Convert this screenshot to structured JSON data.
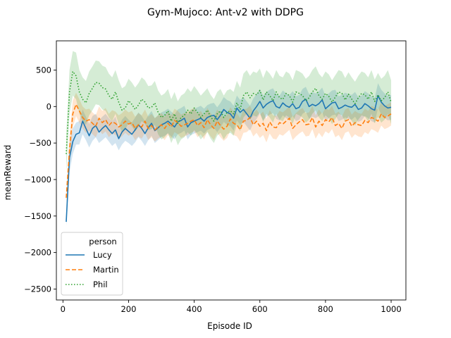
{
  "chart_data": {
    "type": "line",
    "title": "Gym-Mujoco: Ant-v2 with DDPG",
    "xlabel": "Episode ID",
    "ylabel": "meanReward",
    "xlim": [
      -20,
      1045
    ],
    "ylim": [
      -2650,
      900
    ],
    "xticks": [
      0,
      200,
      400,
      600,
      800,
      1000
    ],
    "yticks": [
      -2500,
      -2000,
      -1500,
      -1000,
      -500,
      0,
      500
    ],
    "xtick_labels": [
      "0",
      "200",
      "400",
      "600",
      "800",
      "1000"
    ],
    "ytick_labels": [
      "−2500",
      "−2000",
      "−1500",
      "−1000",
      "−500",
      "0",
      "500"
    ],
    "grid": false,
    "legend": {
      "title": "person",
      "placement": "lower-left"
    },
    "x": [
      10,
      20,
      30,
      40,
      50,
      60,
      70,
      80,
      90,
      100,
      110,
      120,
      130,
      140,
      150,
      160,
      170,
      180,
      190,
      200,
      210,
      220,
      230,
      240,
      250,
      260,
      270,
      280,
      290,
      300,
      310,
      320,
      330,
      340,
      350,
      360,
      370,
      380,
      390,
      400,
      410,
      420,
      430,
      440,
      450,
      460,
      470,
      480,
      490,
      500,
      510,
      520,
      530,
      540,
      550,
      560,
      570,
      580,
      590,
      600,
      610,
      620,
      630,
      640,
      650,
      660,
      670,
      680,
      690,
      700,
      710,
      720,
      730,
      740,
      750,
      760,
      770,
      780,
      790,
      800,
      810,
      820,
      830,
      840,
      850,
      860,
      870,
      880,
      890,
      900,
      910,
      920,
      930,
      940,
      950,
      960,
      970,
      980,
      990,
      1000
    ],
    "series": [
      {
        "name": "Lucy",
        "color": "#1f77b4",
        "dash": "solid",
        "values": [
          -1580,
          -700,
          -480,
          -380,
          -360,
          -200,
          -300,
          -400,
          -300,
          -260,
          -350,
          -300,
          -260,
          -320,
          -370,
          -320,
          -440,
          -350,
          -300,
          -340,
          -380,
          -320,
          -250,
          -300,
          -370,
          -290,
          -230,
          -330,
          -290,
          -250,
          -230,
          -200,
          -240,
          -280,
          -210,
          -190,
          -160,
          -280,
          -220,
          -200,
          -180,
          -160,
          -200,
          -150,
          -130,
          -120,
          -180,
          -120,
          -40,
          -80,
          -100,
          -160,
          -20,
          -80,
          -40,
          -100,
          -160,
          -60,
          0,
          70,
          -20,
          30,
          60,
          80,
          0,
          -20,
          50,
          10,
          -10,
          40,
          -30,
          -10,
          70,
          100,
          0,
          30,
          10,
          40,
          90,
          -30,
          10,
          50,
          60,
          -30,
          -10,
          20,
          0,
          -10,
          30,
          -40,
          -20,
          40,
          10,
          -30,
          -50,
          150,
          60,
          10,
          -20,
          -10
        ],
        "band_low": [
          -1640,
          -900,
          -650,
          -520,
          -520,
          -380,
          -460,
          -560,
          -470,
          -420,
          -500,
          -460,
          -420,
          -480,
          -540,
          -500,
          -600,
          -520,
          -470,
          -500,
          -540,
          -490,
          -420,
          -470,
          -540,
          -460,
          -400,
          -500,
          -460,
          -420,
          -400,
          -370,
          -410,
          -450,
          -380,
          -360,
          -330,
          -450,
          -390,
          -370,
          -350,
          -330,
          -370,
          -320,
          -300,
          -290,
          -350,
          -290,
          -210,
          -250,
          -270,
          -330,
          -190,
          -250,
          -210,
          -270,
          -330,
          -230,
          -170,
          -100,
          -190,
          -140,
          -110,
          -90,
          -170,
          -190,
          -120,
          -160,
          -180,
          -130,
          -200,
          -180,
          -100,
          -70,
          -170,
          -140,
          -160,
          -130,
          -80,
          -200,
          -160,
          -120,
          -110,
          -200,
          -180,
          -150,
          -170,
          -180,
          -140,
          -210,
          -190,
          -130,
          -160,
          -200,
          -220,
          -20,
          -110,
          -160,
          -190,
          -180
        ],
        "band_high": [
          -1520,
          -500,
          -300,
          -220,
          -200,
          -40,
          -140,
          -240,
          -130,
          -100,
          -190,
          -140,
          -100,
          -160,
          -200,
          -140,
          -280,
          -180,
          -130,
          -180,
          -220,
          -150,
          -80,
          -130,
          -200,
          -120,
          -60,
          -160,
          -120,
          -80,
          -60,
          -30,
          -70,
          -110,
          -40,
          -20,
          10,
          -110,
          -50,
          -30,
          -10,
          10,
          -30,
          20,
          40,
          50,
          -10,
          50,
          130,
          90,
          70,
          10,
          150,
          90,
          130,
          70,
          10,
          110,
          170,
          240,
          150,
          200,
          230,
          250,
          170,
          150,
          220,
          180,
          160,
          210,
          140,
          160,
          240,
          270,
          170,
          200,
          180,
          210,
          260,
          140,
          180,
          220,
          230,
          140,
          160,
          190,
          170,
          160,
          200,
          130,
          150,
          210,
          180,
          140,
          120,
          320,
          230,
          180,
          150,
          160
        ]
      },
      {
        "name": "Martin",
        "color": "#ff7f0e",
        "dash": "dashed",
        "values": [
          -1250,
          -600,
          -100,
          30,
          -60,
          -150,
          -200,
          -180,
          -230,
          -270,
          -160,
          -220,
          -180,
          -260,
          -210,
          -230,
          -280,
          -250,
          -200,
          -240,
          -220,
          -300,
          -250,
          -280,
          -200,
          -300,
          -260,
          -320,
          -280,
          -250,
          -300,
          -230,
          -280,
          -190,
          -220,
          -270,
          -250,
          -230,
          -200,
          -180,
          -260,
          -220,
          -290,
          -180,
          -250,
          -300,
          -200,
          -260,
          -310,
          -270,
          -170,
          -230,
          -250,
          -320,
          -200,
          -190,
          -150,
          -250,
          -200,
          -270,
          -230,
          -330,
          -210,
          -280,
          -290,
          -220,
          -240,
          -200,
          -160,
          -300,
          -250,
          -210,
          -180,
          -250,
          -240,
          -150,
          -280,
          -200,
          -260,
          -180,
          -210,
          -150,
          -260,
          -230,
          -300,
          -200,
          -180,
          -270,
          -220,
          -250,
          -260,
          -190,
          -220,
          -150,
          -170,
          -200,
          -100,
          -150,
          -130,
          -100
        ],
        "band_low": [
          -1320,
          -800,
          -280,
          -130,
          -220,
          -300,
          -360,
          -330,
          -380,
          -420,
          -320,
          -380,
          -340,
          -420,
          -370,
          -390,
          -440,
          -410,
          -360,
          -400,
          -380,
          -460,
          -410,
          -440,
          -360,
          -460,
          -420,
          -480,
          -440,
          -410,
          -460,
          -390,
          -440,
          -350,
          -380,
          -430,
          -410,
          -390,
          -360,
          -340,
          -420,
          -380,
          -450,
          -340,
          -410,
          -460,
          -360,
          -420,
          -470,
          -430,
          -330,
          -390,
          -410,
          -480,
          -360,
          -350,
          -310,
          -410,
          -360,
          -430,
          -390,
          -490,
          -370,
          -440,
          -450,
          -380,
          -400,
          -360,
          -320,
          -460,
          -410,
          -370,
          -340,
          -410,
          -400,
          -310,
          -440,
          -360,
          -420,
          -340,
          -370,
          -310,
          -420,
          -390,
          -460,
          -360,
          -340,
          -430,
          -380,
          -410,
          -420,
          -350,
          -380,
          -310,
          -330,
          -360,
          -260,
          -310,
          -290,
          -260
        ],
        "band_high": [
          -1180,
          -400,
          80,
          190,
          100,
          0,
          -40,
          -30,
          -80,
          -120,
          0,
          -60,
          -20,
          -100,
          -50,
          -70,
          -120,
          -90,
          -40,
          -80,
          -60,
          -140,
          -90,
          -120,
          -40,
          -140,
          -100,
          -160,
          -120,
          -90,
          -140,
          -70,
          -120,
          -30,
          -60,
          -110,
          -90,
          -70,
          -40,
          -20,
          -100,
          -60,
          -130,
          -20,
          -90,
          -140,
          -40,
          -100,
          -150,
          -110,
          -10,
          -70,
          -90,
          -160,
          -40,
          -30,
          10,
          -90,
          -40,
          -110,
          -70,
          -170,
          -50,
          -120,
          -130,
          -60,
          -80,
          -40,
          0,
          -140,
          -90,
          -50,
          -20,
          -90,
          -80,
          10,
          -120,
          -40,
          -100,
          -20,
          -50,
          10,
          -100,
          -70,
          -140,
          -40,
          -20,
          -110,
          -60,
          -90,
          -100,
          -30,
          -60,
          10,
          -10,
          -40,
          60,
          10,
          30,
          60
        ]
      },
      {
        "name": "Phil",
        "color": "#2ca02c",
        "dash": "dotted",
        "values": [
          -650,
          200,
          480,
          420,
          200,
          100,
          50,
          180,
          250,
          330,
          320,
          260,
          240,
          150,
          100,
          200,
          60,
          -50,
          -20,
          80,
          30,
          -40,
          20,
          100,
          60,
          -20,
          -10,
          50,
          -80,
          -150,
          -120,
          -60,
          -200,
          -100,
          -230,
          -150,
          -120,
          -50,
          -100,
          -20,
          -80,
          -150,
          -100,
          -50,
          -140,
          -200,
          -100,
          -60,
          -150,
          -80,
          -60,
          -100,
          50,
          -40,
          150,
          200,
          120,
          180,
          160,
          220,
          90,
          200,
          150,
          80,
          200,
          120,
          100,
          180,
          150,
          60,
          200,
          180,
          150,
          80,
          120,
          200,
          250,
          150,
          100,
          180,
          140,
          60,
          130,
          200,
          180,
          90,
          170,
          100,
          40,
          120,
          180,
          160,
          100,
          200,
          70,
          160,
          80,
          120,
          200,
          60
        ],
        "band_low": [
          -900,
          -100,
          150,
          100,
          -100,
          -200,
          -250,
          -120,
          -50,
          30,
          20,
          -40,
          -60,
          -150,
          -200,
          -100,
          -240,
          -350,
          -320,
          -220,
          -270,
          -340,
          -280,
          -200,
          -240,
          -320,
          -310,
          -250,
          -380,
          -450,
          -420,
          -360,
          -500,
          -400,
          -530,
          -450,
          -420,
          -350,
          -400,
          -320,
          -380,
          -450,
          -400,
          -350,
          -440,
          -500,
          -400,
          -360,
          -450,
          -380,
          -360,
          -400,
          -250,
          -340,
          -150,
          -100,
          -180,
          -120,
          -140,
          -80,
          -210,
          -100,
          -150,
          -220,
          -100,
          -180,
          -200,
          -120,
          -150,
          -240,
          -100,
          -120,
          -150,
          -220,
          -180,
          -100,
          -50,
          -150,
          -200,
          -120,
          -160,
          -240,
          -170,
          -100,
          -120,
          -210,
          -130,
          -200,
          -260,
          -180,
          -120,
          -140,
          -200,
          -100,
          -230,
          -140,
          -220,
          -180,
          -100,
          -240
        ],
        "band_high": [
          -400,
          500,
          760,
          740,
          500,
          400,
          350,
          480,
          550,
          630,
          620,
          560,
          540,
          450,
          400,
          500,
          360,
          250,
          280,
          380,
          330,
          260,
          320,
          400,
          360,
          280,
          290,
          350,
          220,
          150,
          180,
          240,
          100,
          200,
          70,
          150,
          180,
          250,
          200,
          280,
          220,
          150,
          200,
          250,
          160,
          100,
          200,
          240,
          150,
          220,
          240,
          200,
          350,
          260,
          450,
          500,
          420,
          480,
          460,
          520,
          390,
          500,
          450,
          380,
          500,
          420,
          400,
          480,
          450,
          360,
          500,
          480,
          450,
          380,
          420,
          500,
          550,
          450,
          400,
          480,
          440,
          360,
          430,
          500,
          480,
          390,
          470,
          400,
          340,
          420,
          480,
          460,
          400,
          500,
          370,
          460,
          380,
          420,
          500,
          360
        ]
      }
    ]
  }
}
